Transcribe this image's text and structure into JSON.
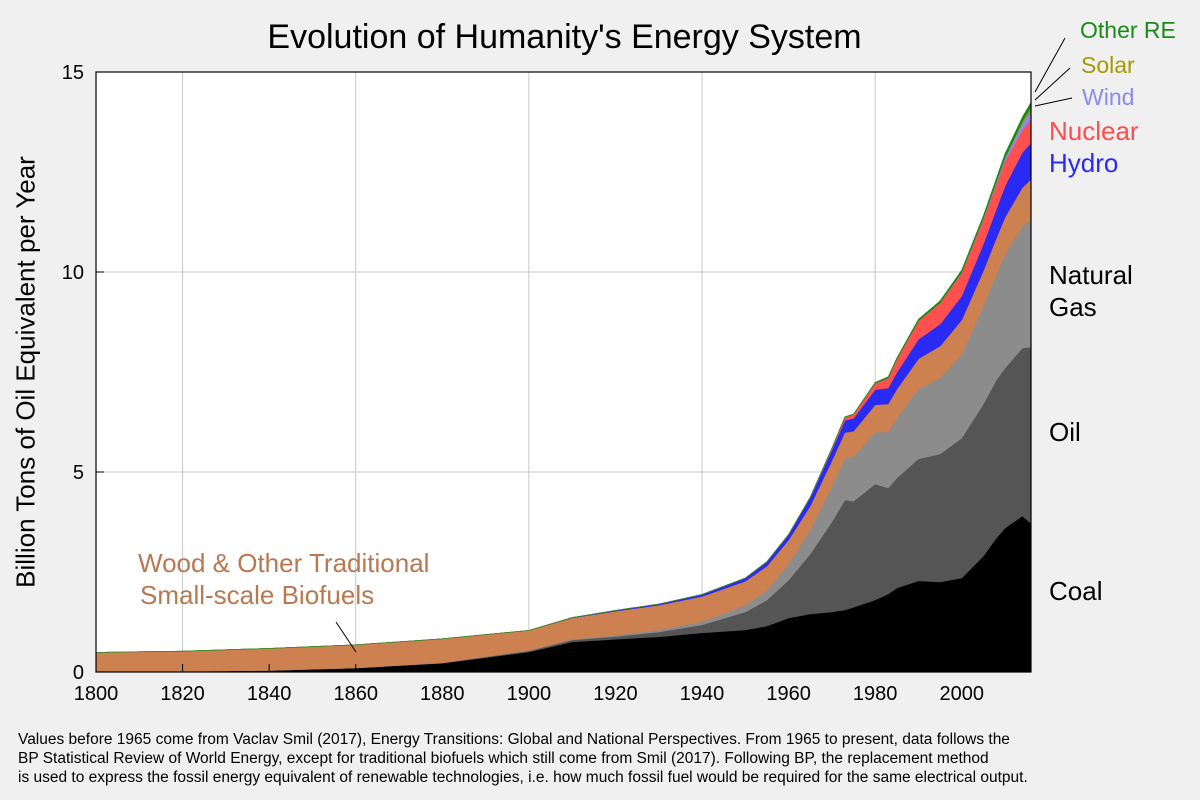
{
  "chart_data": {
    "type": "area",
    "stacked": true,
    "title": "Evolution of Humanity's Energy System",
    "ylabel": "Billion Tons of Oil Equivalent per Year",
    "xlim": [
      1800,
      2016
    ],
    "ylim": [
      0,
      15
    ],
    "x_ticks": [
      1800,
      1820,
      1840,
      1860,
      1880,
      1900,
      1920,
      1940,
      1960,
      1980,
      2000
    ],
    "y_ticks": [
      0,
      5,
      10,
      15
    ],
    "grid": true,
    "x": [
      1800,
      1820,
      1840,
      1860,
      1880,
      1900,
      1910,
      1920,
      1930,
      1940,
      1950,
      1955,
      1960,
      1965,
      1970,
      1973,
      1975,
      1980,
      1983,
      1985,
      1990,
      1995,
      2000,
      2005,
      2008,
      2010,
      2014,
      2016
    ],
    "series": [
      {
        "name": "Coal",
        "color": "#000000",
        "values": [
          0.01,
          0.02,
          0.04,
          0.1,
          0.22,
          0.5,
          0.75,
          0.82,
          0.88,
          0.98,
          1.05,
          1.15,
          1.35,
          1.45,
          1.5,
          1.55,
          1.62,
          1.8,
          1.95,
          2.1,
          2.28,
          2.25,
          2.35,
          2.9,
          3.35,
          3.6,
          3.9,
          3.72
        ]
      },
      {
        "name": "Oil",
        "color": "#555555",
        "values": [
          0,
          0,
          0,
          0,
          0.01,
          0.03,
          0.05,
          0.07,
          0.12,
          0.2,
          0.45,
          0.65,
          0.95,
          1.5,
          2.25,
          2.75,
          2.65,
          2.9,
          2.65,
          2.75,
          3.05,
          3.2,
          3.5,
          3.8,
          3.95,
          4.0,
          4.2,
          4.4
        ]
      },
      {
        "name": "Natural Gas",
        "color": "#8c8c8c",
        "values": [
          0,
          0,
          0,
          0,
          0,
          0.01,
          0.02,
          0.03,
          0.05,
          0.08,
          0.17,
          0.25,
          0.4,
          0.6,
          0.9,
          1.05,
          1.1,
          1.3,
          1.4,
          1.5,
          1.75,
          1.9,
          2.1,
          2.45,
          2.65,
          2.85,
          3.05,
          3.2
        ]
      },
      {
        "name": "Wood & Other Traditional Small-scale Biofuels",
        "color": "#cd8050",
        "values": [
          0.48,
          0.5,
          0.55,
          0.58,
          0.6,
          0.5,
          0.53,
          0.6,
          0.62,
          0.63,
          0.6,
          0.6,
          0.6,
          0.6,
          0.63,
          0.64,
          0.65,
          0.68,
          0.7,
          0.72,
          0.75,
          0.8,
          0.85,
          0.88,
          0.9,
          0.92,
          0.96,
          1.0
        ]
      },
      {
        "name": "Hydro",
        "color": "#2a2af5",
        "values": [
          0,
          0,
          0,
          0,
          0,
          0,
          0.01,
          0.02,
          0.03,
          0.05,
          0.08,
          0.11,
          0.14,
          0.21,
          0.27,
          0.3,
          0.32,
          0.38,
          0.4,
          0.42,
          0.49,
          0.55,
          0.6,
          0.67,
          0.72,
          0.78,
          0.88,
          0.91
        ]
      },
      {
        "name": "Nuclear",
        "color": "#ff5050",
        "values": [
          0,
          0,
          0,
          0,
          0,
          0,
          0,
          0,
          0,
          0,
          0,
          0,
          0,
          0.01,
          0.04,
          0.08,
          0.1,
          0.16,
          0.25,
          0.33,
          0.46,
          0.53,
          0.58,
          0.62,
          0.62,
          0.62,
          0.56,
          0.59
        ]
      },
      {
        "name": "Wind",
        "color": "#8a8af0",
        "values": [
          0,
          0,
          0,
          0,
          0,
          0,
          0,
          0,
          0,
          0,
          0,
          0,
          0,
          0,
          0,
          0,
          0,
          0,
          0,
          0,
          0,
          0,
          0.01,
          0.02,
          0.05,
          0.08,
          0.16,
          0.22
        ]
      },
      {
        "name": "Solar",
        "color": "#a59a00",
        "values": [
          0,
          0,
          0,
          0,
          0,
          0,
          0,
          0,
          0,
          0,
          0,
          0,
          0,
          0,
          0,
          0,
          0,
          0,
          0,
          0,
          0,
          0,
          0,
          0,
          0.01,
          0.01,
          0.05,
          0.08
        ]
      },
      {
        "name": "Other RE",
        "color": "#1a8a1a",
        "values": [
          0,
          0,
          0,
          0,
          0,
          0,
          0,
          0,
          0,
          0,
          0,
          0,
          0,
          0,
          0.01,
          0.01,
          0.01,
          0.02,
          0.03,
          0.03,
          0.04,
          0.05,
          0.06,
          0.07,
          0.09,
          0.1,
          0.11,
          0.12
        ]
      }
    ],
    "series_labels": {
      "other_re": "Other RE",
      "solar": "Solar",
      "wind": "Wind",
      "nuclear": "Nuclear",
      "hydro": "Hydro",
      "gas_line1": "Natural",
      "gas_line2": "Gas",
      "oil": "Oil",
      "coal": "Coal",
      "wood_line1": "Wood & Other Traditional",
      "wood_line2": "Small-scale Biofuels"
    }
  },
  "footnote": [
    "Values before 1965 come from Vaclav Smil (2017), Energy Transitions: Global and National Perspectives.  From 1965 to present, data follows the",
    "BP Statistical Review of World Energy, except for traditional biofuels which still come from Smil (2017).  Following BP, the replacement method",
    "is used to express the fossil energy equivalent of renewable technologies, i.e. how much fossil fuel would be required for the same electrical output."
  ]
}
